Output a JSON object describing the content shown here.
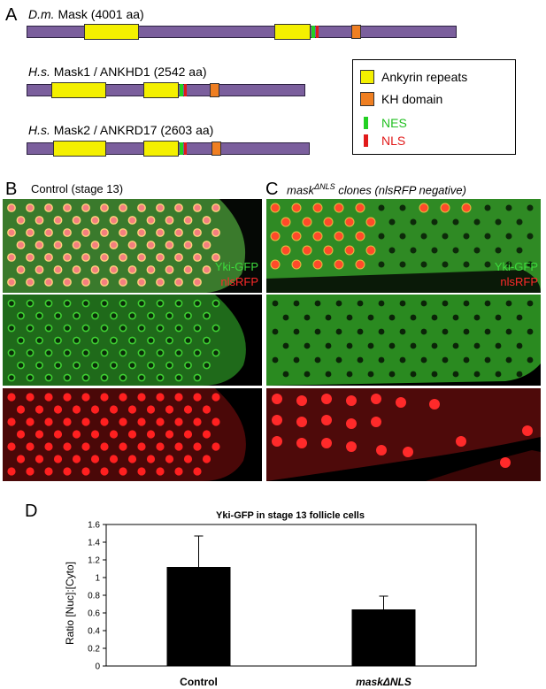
{
  "panelA": {
    "letter": "A",
    "proteins": [
      {
        "species": "D.m.",
        "name": "Mask (4001 aa)"
      },
      {
        "species": "H.s.",
        "name": "Mask1 / ANKHD1 (2542 aa)"
      },
      {
        "species": "H.s.",
        "name": "Mask2 / ANKRD17 (2603 aa)"
      }
    ],
    "legend": [
      {
        "label": "Ankyrin repeats",
        "color": "#f4f000"
      },
      {
        "label": "KH domain",
        "color": "#ef7f22"
      },
      {
        "label": "NES",
        "color": "#22d022"
      },
      {
        "label": "NLS",
        "color": "#e11a1a"
      }
    ],
    "colors": {
      "protein_bar": "#7b5f9d"
    }
  },
  "panelB": {
    "letter": "B",
    "title": "Control (stage 13)",
    "channel_green": "Yki-GFP",
    "channel_red": "nlsRFP"
  },
  "panelC": {
    "letter": "C",
    "title_prefix": "mask",
    "title_superscript": "ΔNLS",
    "title_suffix": " clones (nlsRFP negative)",
    "channel_green": "Yki-GFP",
    "channel_red": "nlsRFP"
  },
  "panelD": {
    "letter": "D",
    "chart_data": {
      "type": "bar",
      "title": "Yki-GFP in stage 13 follicle cells",
      "ylabel": "Ratio [Nuc]:[Cyto]",
      "xlabel": "",
      "categories": [
        "Control",
        "maskΔNLS"
      ],
      "values": [
        1.12,
        0.64
      ],
      "errors": [
        0.35,
        0.15
      ],
      "ylim": [
        0,
        1.6
      ],
      "yticks": [
        "0",
        "0.2",
        "0.4",
        "0.6",
        "0.8",
        "1",
        "1.2",
        "1.4",
        "1.6"
      ],
      "grid": false,
      "bar_color": "#000000"
    }
  }
}
